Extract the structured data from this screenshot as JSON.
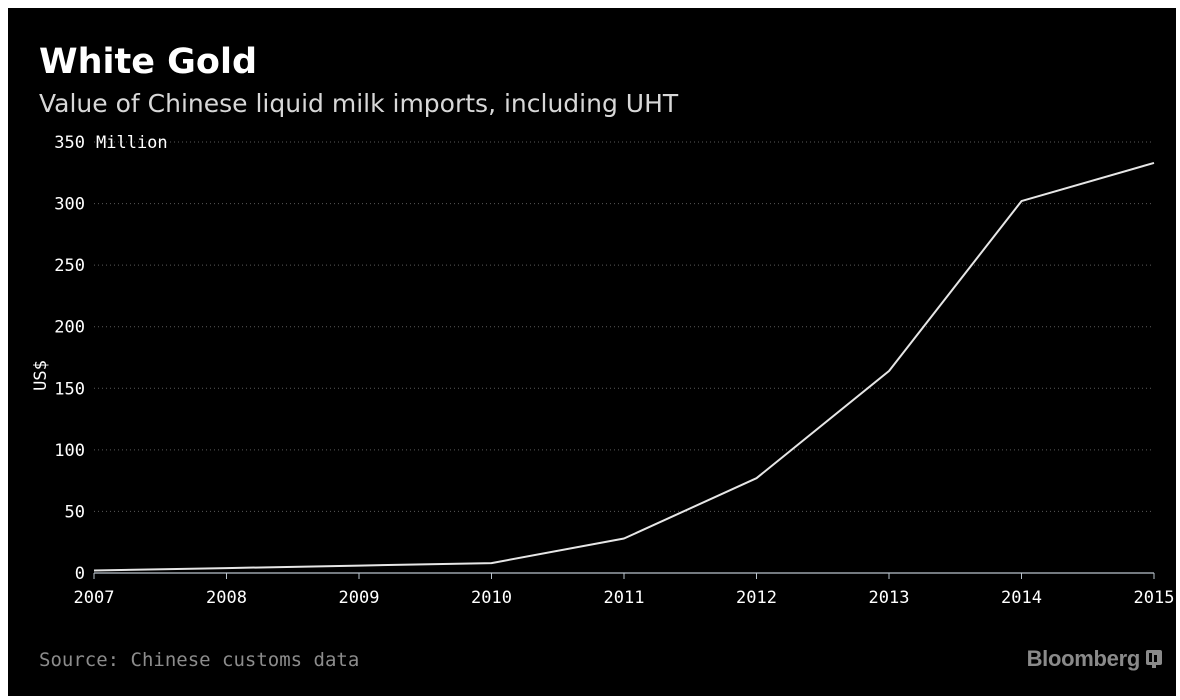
{
  "chart_data": {
    "type": "line",
    "title": "White Gold",
    "subtitle": "Value of Chinese liquid milk imports, including UHT",
    "ylabel": "US$",
    "y_unit_label": "Million",
    "xlabel": "",
    "x": [
      "2007",
      "2008",
      "2009",
      "2010",
      "2011",
      "2012",
      "2013",
      "2014",
      "2015"
    ],
    "ylim": [
      0,
      350
    ],
    "yticks": [
      0,
      50,
      100,
      150,
      200,
      250,
      300,
      350
    ],
    "series": [
      {
        "values": [
          2,
          4,
          6,
          8,
          28,
          77,
          164,
          302,
          333
        ],
        "color": "#e6e6e6"
      }
    ],
    "grid": true,
    "legend": "none"
  },
  "footer": {
    "source": "Source: Chinese customs data",
    "brand": "Bloomberg",
    "brand_icon": "bloomberg-terminal-icon"
  },
  "colors": {
    "background": "#000000",
    "line": "#e6e6e6",
    "grid": "#5a5a5a",
    "source_text": "#8c8c8c"
  }
}
